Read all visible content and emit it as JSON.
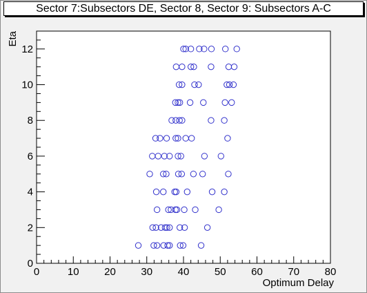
{
  "chart_data": {
    "type": "scatter",
    "title": "Sector 7:Subsectors DE, Sector 8, Sector 9: Subsectors A-C",
    "xlabel": "Optimum Delay",
    "ylabel": "Eta",
    "xlim": [
      0,
      80
    ],
    "ylim": [
      0,
      13
    ],
    "x_ticks": [
      0,
      10,
      20,
      30,
      40,
      50,
      60,
      70,
      80
    ],
    "y_ticks": [
      0,
      2,
      4,
      6,
      8,
      10,
      12
    ],
    "grid": false,
    "legend": "none",
    "marker": "open-circle",
    "marker_color": "#3333cc",
    "series": [
      {
        "x": [
          27.7,
          31.9,
          32.8,
          34.6,
          35.7,
          36.2,
          39.1,
          39.9,
          44.8,
          31.6,
          32.5,
          33.9,
          35.0,
          35.5,
          36.2,
          39.0,
          40.3,
          46.5,
          32.8,
          35.9,
          36.6,
          37.8,
          38.2,
          40.2,
          43.2,
          49.6,
          32.6,
          34.5,
          37.6,
          38.0,
          41.0,
          47.8,
          51.1,
          30.8,
          34.5,
          35.3,
          38.6,
          39.5,
          42.7,
          45.2,
          52.2,
          31.5,
          33.1,
          34.8,
          36.2,
          38.5,
          39.3,
          45.7,
          50.2,
          32.4,
          33.6,
          35.4,
          37.9,
          38.5,
          40.6,
          42.2,
          52.0,
          36.8,
          37.9,
          38.9,
          39.6,
          47.5,
          51.1,
          37.8,
          38.5,
          39.0,
          41.8,
          45.4,
          51.3,
          53.1,
          38.8,
          39.6,
          43.0,
          44.1,
          51.8,
          52.5,
          53.6,
          38.0,
          39.6,
          42.0,
          42.8,
          47.5,
          52.3,
          53.8,
          40.0,
          40.6,
          42.0,
          44.3,
          45.6,
          47.6,
          51.4,
          54.5
        ]
      }
    ]
  },
  "chart_data_y": [
    1,
    1,
    1,
    1,
    1,
    1,
    1,
    1,
    1,
    2,
    2,
    2,
    2,
    2,
    2,
    2,
    2,
    2,
    3,
    3,
    3,
    3,
    3,
    3,
    3,
    3,
    4,
    4,
    4,
    4,
    4,
    4,
    4,
    5,
    5,
    5,
    5,
    5,
    5,
    5,
    5,
    6,
    6,
    6,
    6,
    6,
    6,
    6,
    6,
    7,
    7,
    7,
    7,
    7,
    7,
    7,
    7,
    8,
    8,
    8,
    8,
    8,
    8,
    9,
    9,
    9,
    9,
    9,
    9,
    9,
    10,
    10,
    10,
    10,
    10,
    10,
    10,
    11,
    11,
    11,
    11,
    11,
    11,
    11,
    12,
    12,
    12,
    12,
    12,
    12,
    12,
    12
  ]
}
